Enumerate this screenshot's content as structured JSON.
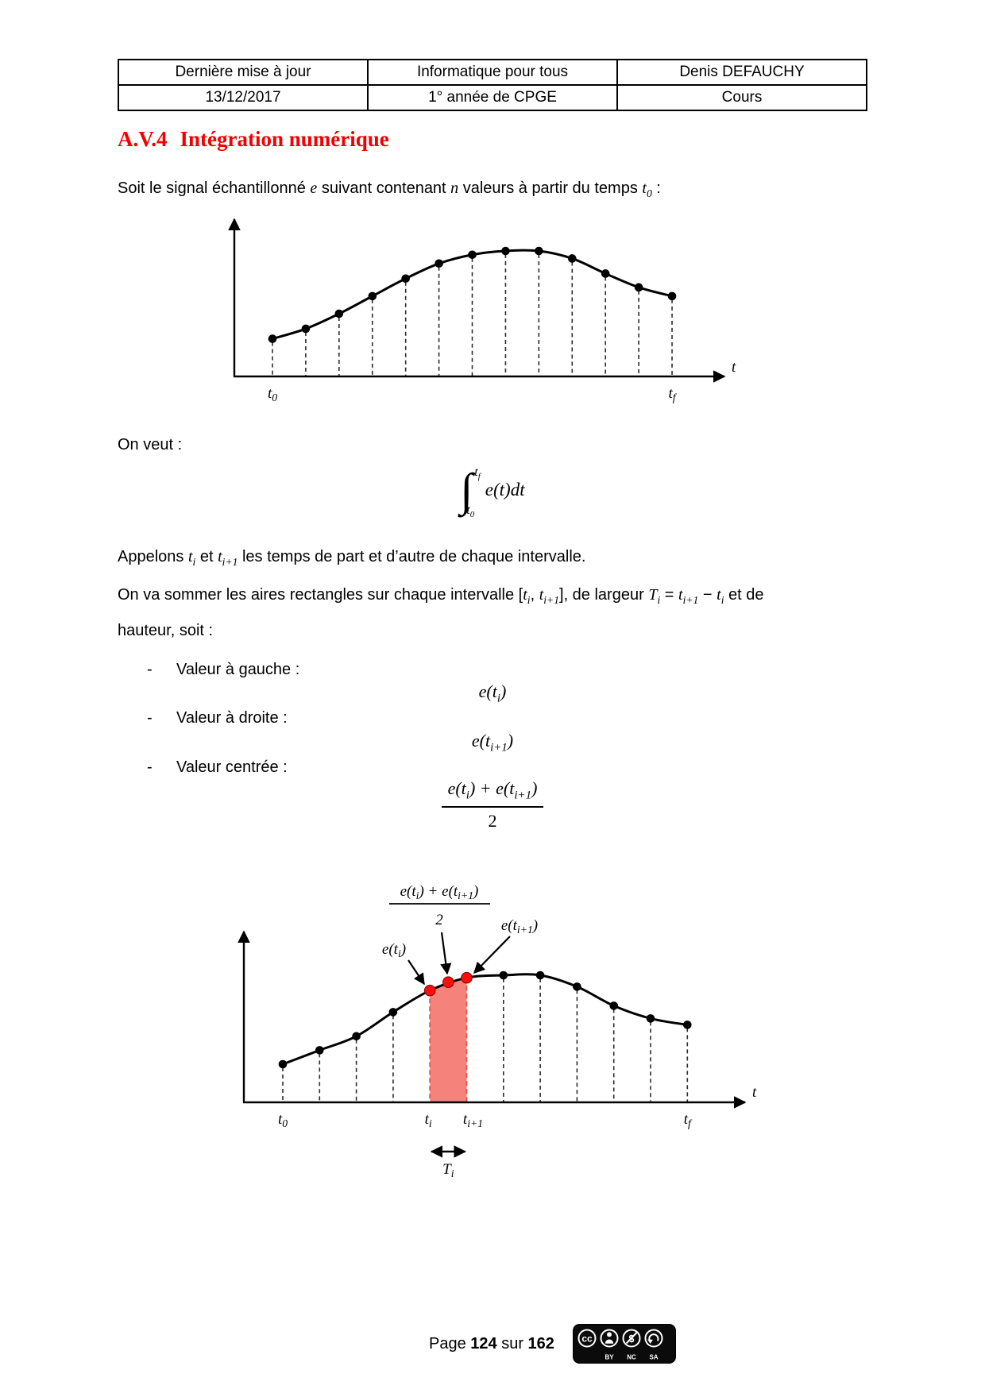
{
  "header_table": {
    "rows": [
      [
        "Dernière mise à jour",
        "Informatique pour tous",
        "Denis DEFAUCHY"
      ],
      [
        "13/12/2017",
        "1° année de CPGE",
        "Cours"
      ]
    ]
  },
  "title": {
    "number": "A.V.4",
    "text": "Intégration numérique"
  },
  "intro": {
    "s1": "Soit le signal échantillonné ",
    "m1": "e",
    "s2": " suivant contenant ",
    "m2": "n",
    "s3": " valeurs à partir du temps ",
    "m3": "t",
    "m3sub": "0",
    "s4": " :"
  },
  "on_veut": "On veut :",
  "integral": {
    "sign": "∫",
    "up_main": "t",
    "up_sub": "f",
    "lo_main": "t",
    "lo_sub": "0",
    "body": "e(t)dt"
  },
  "appelons": {
    "s1": "Appelons ",
    "m1": "t",
    "m1sub": "i",
    "s2": " et ",
    "m2": "t",
    "m2sub": "i+1",
    "s3": " les temps de part et d’autre de chaque intervalle."
  },
  "sommer": {
    "l1": {
      "s1": "On va sommer les aires rectangles sur chaque intervalle [",
      "m1": "t",
      "m1sub": "i",
      "s2": ", ",
      "m2": "t",
      "m2sub": "i+1",
      "s3": "], de largeur ",
      "m3": "T",
      "m3sub": "i",
      "s4": " = ",
      "m4": "t",
      "m4sub": "i+1",
      "s5": " − ",
      "m5": "t",
      "m5sub": "i",
      "s6": " et de"
    },
    "l2": "hauteur, soit :"
  },
  "bullets": {
    "dash": "-",
    "items": [
      "Valeur à gauche :",
      "Valeur à droite :",
      "Valeur centrée :"
    ]
  },
  "f_left": {
    "pre": "e(t",
    "sub": "i",
    "post": ")"
  },
  "f_right": {
    "pre": "e(t",
    "sub": "i+1",
    "post": ")"
  },
  "f_center": {
    "n1": "e(t",
    "s1": "i",
    "n2": ") + e(t",
    "s2": "i+1",
    "n3": ")",
    "den": "2"
  },
  "chart_data": [
    {
      "type": "line",
      "name": "signal-echantillonne",
      "x_axis_label": "t",
      "tick_labels": [
        {
          "index": 0,
          "main": "t",
          "sub": "0"
        },
        {
          "index": 12,
          "main": "t",
          "sub": "f"
        }
      ],
      "values_norm": [
        0.3,
        0.38,
        0.5,
        0.64,
        0.78,
        0.9,
        0.97,
        1.0,
        1.0,
        0.94,
        0.82,
        0.71,
        0.64
      ],
      "point_color": "#000000",
      "dashed_verticals": true
    },
    {
      "type": "line",
      "name": "aire-rectangle-intervalle",
      "x_axis_label": "t",
      "tick_labels": [
        {
          "index": 0,
          "main": "t",
          "sub": "0"
        },
        {
          "index": 4,
          "main": "t",
          "sub": "i"
        },
        {
          "index": 5,
          "main": "t",
          "sub": "i+1"
        },
        {
          "index": 11,
          "main": "t",
          "sub": "f"
        }
      ],
      "values_norm": [
        0.3,
        0.41,
        0.52,
        0.71,
        0.88,
        0.98,
        1.0,
        1.0,
        0.91,
        0.76,
        0.66,
        0.61
      ],
      "point_color": "#000000",
      "dashed_verticals": true,
      "highlight": {
        "from_index": 4,
        "to_index": 5,
        "fill": "#F5837C",
        "edge_color": "#E0524C",
        "dot_color": "#F80F0F",
        "width_label": {
          "main": "T",
          "sub": "i"
        }
      },
      "annotations": {
        "center_fraction": {
          "numerator": [
            {
              "t": "e(t"
            },
            {
              "t": "i",
              "sub": true
            },
            {
              "t": ") + e(t"
            },
            {
              "t": "i+1",
              "sub": true
            },
            {
              "t": ")"
            }
          ],
          "denominator": "2"
        },
        "left_point": [
          {
            "t": "e(t"
          },
          {
            "t": "i",
            "sub": true
          },
          {
            "t": ")"
          }
        ],
        "right_point": [
          {
            "t": "e(t"
          },
          {
            "t": "i+1",
            "sub": true
          },
          {
            "t": ")"
          }
        ]
      }
    }
  ],
  "footer": {
    "p1": "Page ",
    "page": "124",
    "p2": " sur ",
    "total": "162"
  },
  "license": {
    "logo": "cc",
    "nc_symbol": "$",
    "labels": [
      "BY",
      "NC",
      "SA"
    ]
  }
}
